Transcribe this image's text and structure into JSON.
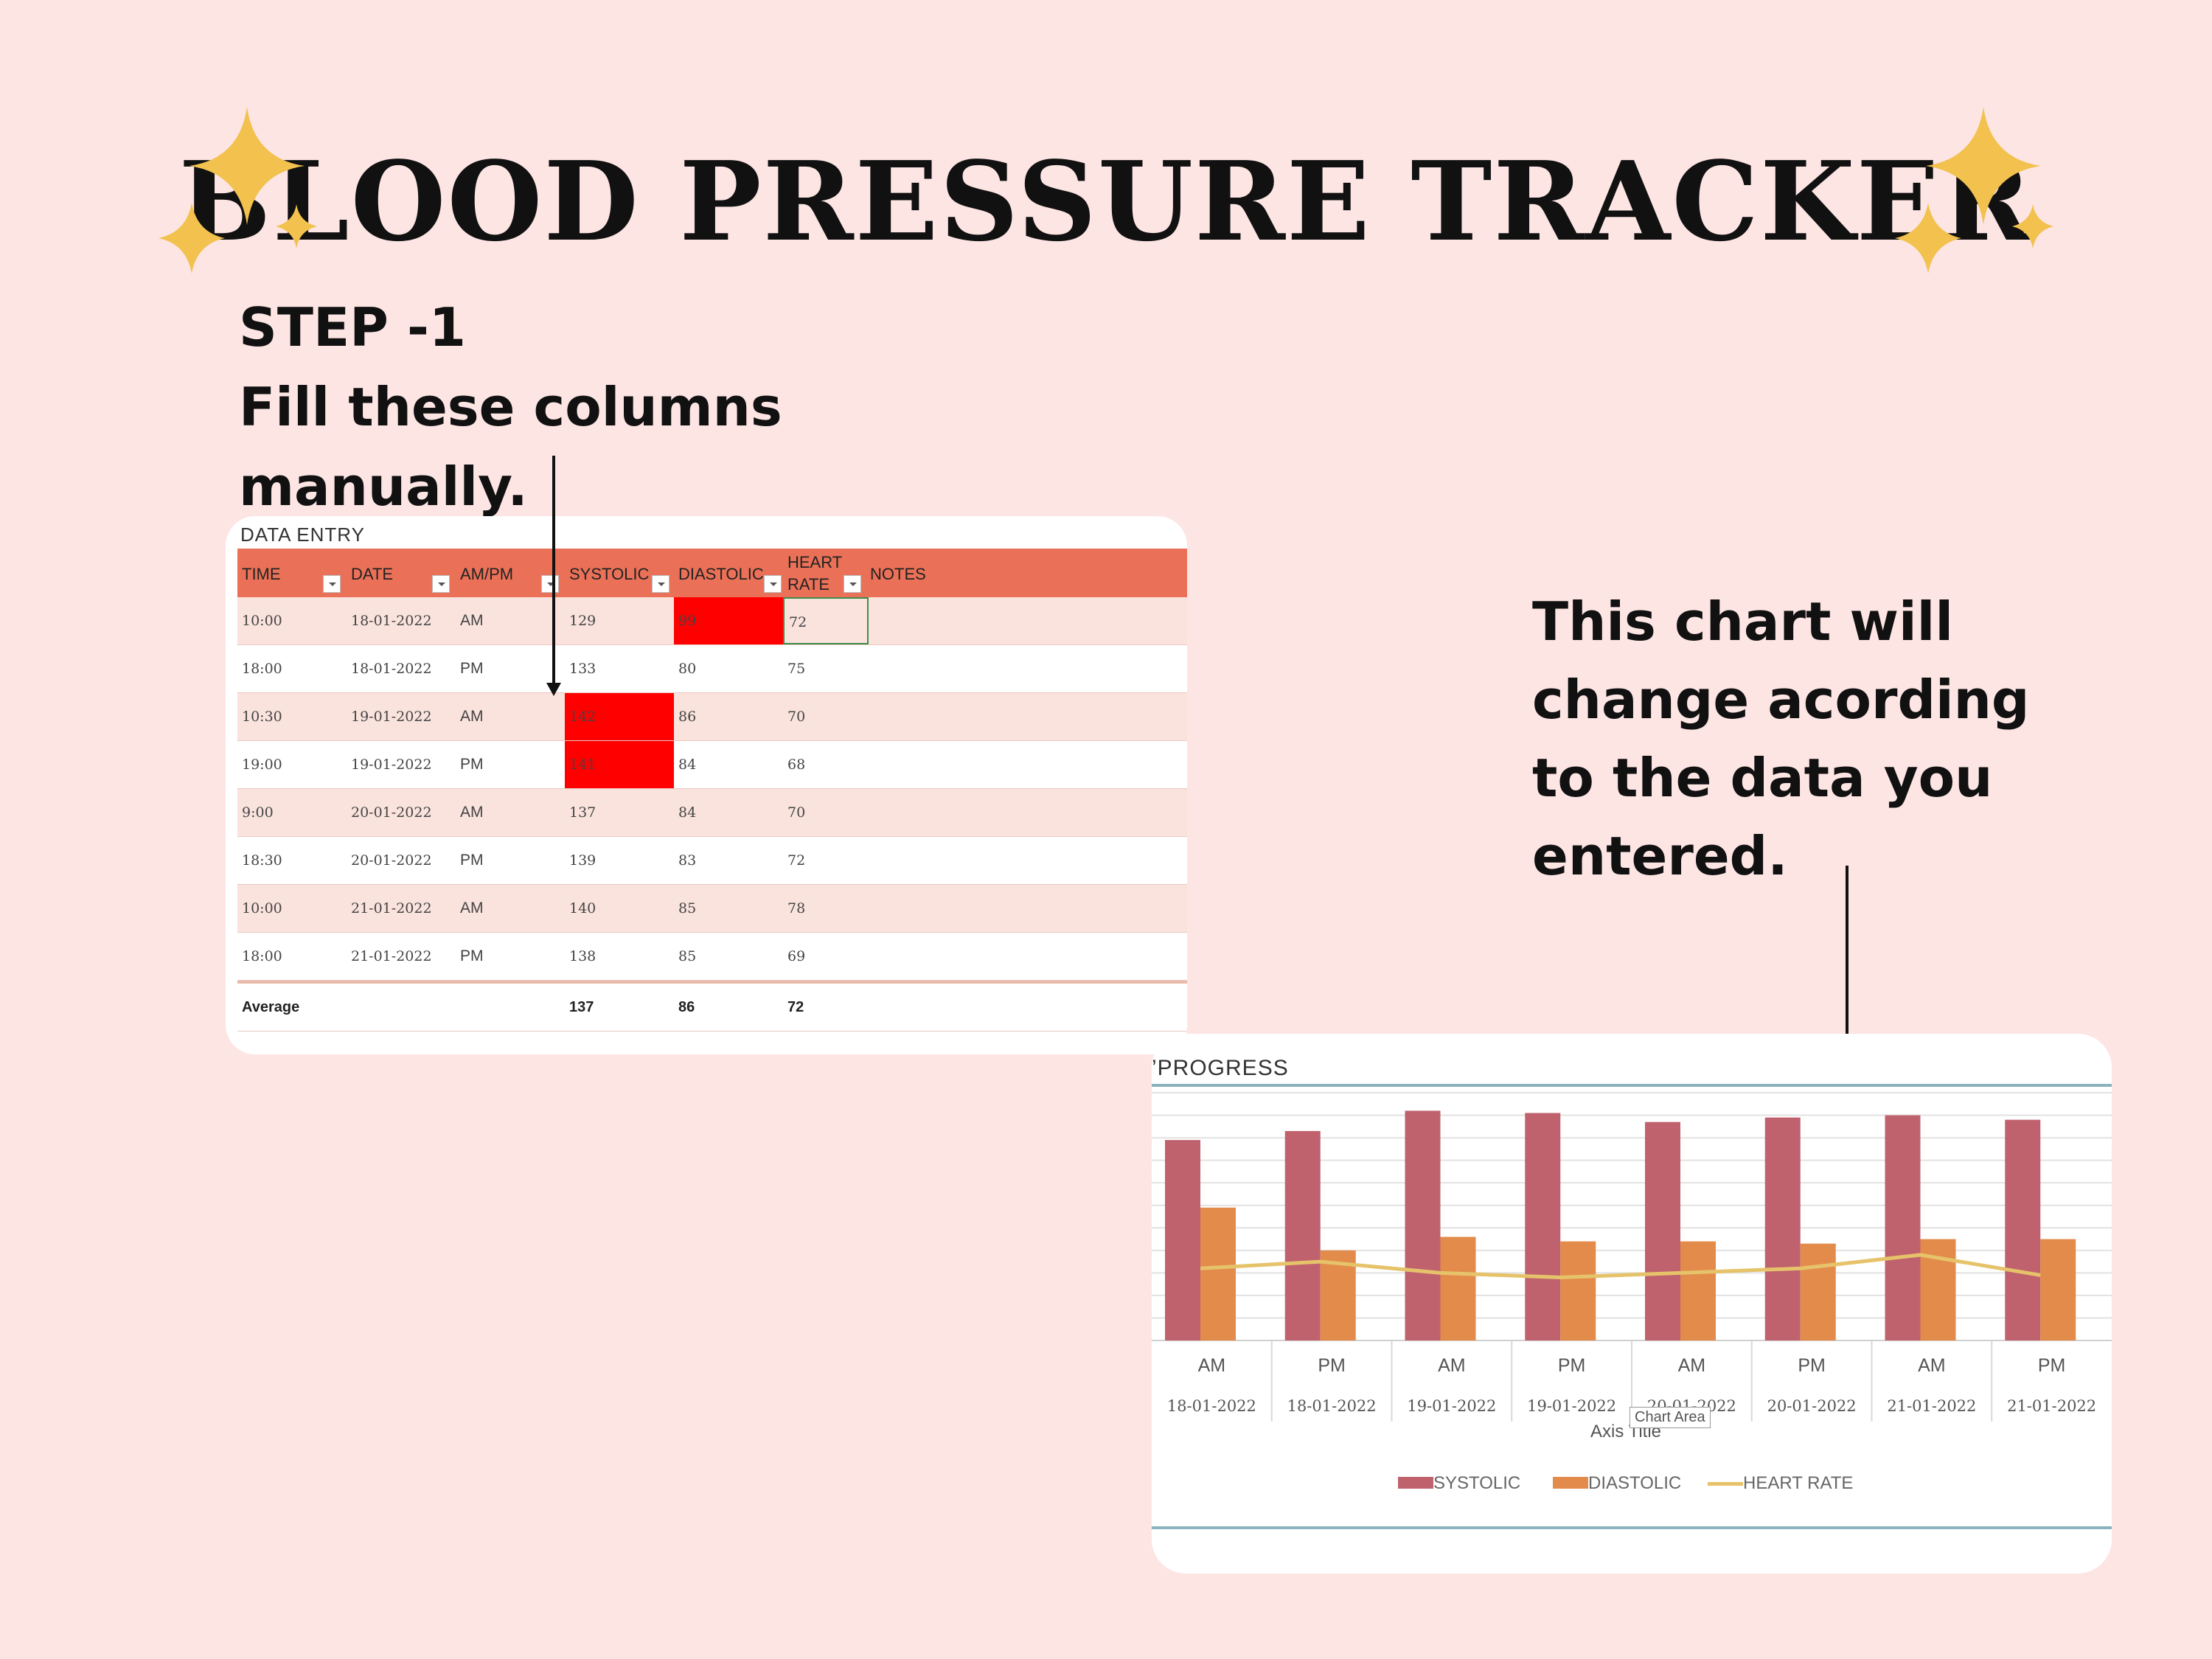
{
  "title": "BLOOD PRESSURE TRACKER",
  "step": {
    "line1": "STEP -1",
    "line2": "Fill these columns",
    "line3": "manually."
  },
  "note": {
    "line1": "This chart will",
    "line2": "change acording",
    "line3": "to the data you",
    "line4": "entered."
  },
  "data_entry": {
    "title": "DATA ENTRY",
    "headers": {
      "time": "TIME",
      "date": "DATE",
      "ampm": "AM/PM",
      "systolic": "SYSTOLIC",
      "diastolic": "DIASTOLIC",
      "heart_rate_1": "HEART",
      "heart_rate_2": "RATE",
      "notes": "NOTES"
    },
    "rows": [
      {
        "time": "10:00",
        "date": "18-01-2022",
        "ampm": "AM",
        "systolic": "129",
        "diastolic": "99",
        "hr": "72"
      },
      {
        "time": "18:00",
        "date": "18-01-2022",
        "ampm": "PM",
        "systolic": "133",
        "diastolic": "80",
        "hr": "75"
      },
      {
        "time": "10:30",
        "date": "19-01-2022",
        "ampm": "AM",
        "systolic": "142",
        "diastolic": "86",
        "hr": "70"
      },
      {
        "time": "19:00",
        "date": "19-01-2022",
        "ampm": "PM",
        "systolic": "141",
        "diastolic": "84",
        "hr": "68"
      },
      {
        "time": "9:00",
        "date": "20-01-2022",
        "ampm": "AM",
        "systolic": "137",
        "diastolic": "84",
        "hr": "70"
      },
      {
        "time": "18:30",
        "date": "20-01-2022",
        "ampm": "PM",
        "systolic": "139",
        "diastolic": "83",
        "hr": "72"
      },
      {
        "time": "10:00",
        "date": "21-01-2022",
        "ampm": "AM",
        "systolic": "140",
        "diastolic": "85",
        "hr": "78"
      },
      {
        "time": "18:00",
        "date": "21-01-2022",
        "ampm": "PM",
        "systolic": "138",
        "diastolic": "85",
        "hr": "69"
      }
    ],
    "average": {
      "label": "Average",
      "systolic": "137",
      "diastolic": "86",
      "hr": "72"
    },
    "highlight_color": "#fe0000",
    "header_color": "#ea7157"
  },
  "chart_panel": {
    "title": "PROGRESS",
    "tooltip": "Chart Area",
    "axis_title": "Axis Title"
  },
  "chart_data": {
    "type": "bar",
    "title": "PROGRESS",
    "xlabel": "Axis Title",
    "ylabel": "",
    "categories": [
      [
        "AM",
        "18-01-2022"
      ],
      [
        "PM",
        "18-01-2022"
      ],
      [
        "AM",
        "19-01-2022"
      ],
      [
        "PM",
        "19-01-2022"
      ],
      [
        "AM",
        "20-01-2022"
      ],
      [
        "PM",
        "20-01-2022"
      ],
      [
        "AM",
        "21-01-2022"
      ],
      [
        "PM",
        "21-01-2022"
      ]
    ],
    "series": [
      {
        "name": "SYSTOLIC",
        "type": "bar",
        "color": "#c0626e",
        "values": [
          129,
          133,
          142,
          141,
          137,
          139,
          140,
          138
        ]
      },
      {
        "name": "DIASTOLIC",
        "type": "bar",
        "color": "#e38b4b",
        "values": [
          99,
          80,
          86,
          84,
          84,
          83,
          85,
          85
        ]
      },
      {
        "name": "HEART RATE",
        "type": "line",
        "color": "#e6c36a",
        "values": [
          72,
          75,
          70,
          68,
          70,
          72,
          78,
          69
        ]
      }
    ],
    "legend_position": "bottom",
    "grid": true
  },
  "colors": {
    "background": "#fde5e4",
    "sparkle": "#f2c14e"
  }
}
